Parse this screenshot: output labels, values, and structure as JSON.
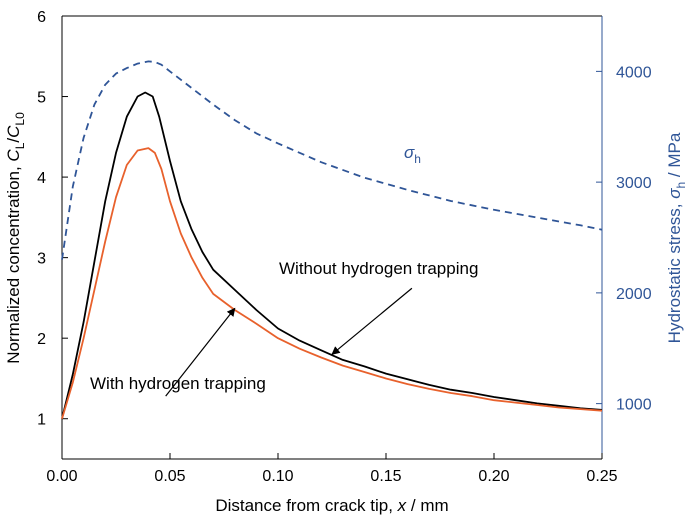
{
  "chart_data": {
    "type": "line",
    "xlabel": {
      "main": "Distance from crack tip, ",
      "var": "x",
      "unit": " / mm"
    },
    "xlim": [
      0.0,
      0.25
    ],
    "x_ticks": [
      "0.00",
      "0.05",
      "0.10",
      "0.15",
      "0.20",
      "0.25"
    ],
    "left_axis": {
      "label": {
        "prefix": "Normalized concentration, ",
        "num_base": "C",
        "num_sub": "L",
        "slash": "/",
        "den_base": "C",
        "den_sub": "L0"
      },
      "ylim": [
        0.5,
        6.0
      ],
      "ticks": [
        "1",
        "2",
        "3",
        "4",
        "5",
        "6"
      ]
    },
    "right_axis": {
      "label": {
        "prefix": "Hydrostatic stress, ",
        "var": "σ",
        "sub": "h",
        "unit": " / MPa"
      },
      "ylim": [
        500,
        4500
      ],
      "ticks": [
        "1000",
        "2000",
        "3000",
        "4000"
      ],
      "color": "#2f5597"
    },
    "series": [
      {
        "axis": "left",
        "color": "#000000",
        "style": "solid",
        "x": [
          0.0,
          0.005,
          0.01,
          0.015,
          0.02,
          0.025,
          0.03,
          0.035,
          0.0385,
          0.042,
          0.045,
          0.05,
          0.055,
          0.06,
          0.065,
          0.07,
          0.08,
          0.09,
          0.1,
          0.11,
          0.12,
          0.13,
          0.14,
          0.15,
          0.16,
          0.17,
          0.18,
          0.19,
          0.2,
          0.21,
          0.22,
          0.23,
          0.24,
          0.25
        ],
        "values": [
          1.0,
          1.55,
          2.2,
          2.95,
          3.7,
          4.3,
          4.75,
          5.0,
          5.05,
          5.0,
          4.75,
          4.2,
          3.7,
          3.35,
          3.07,
          2.85,
          2.6,
          2.35,
          2.12,
          1.97,
          1.85,
          1.73,
          1.65,
          1.56,
          1.49,
          1.42,
          1.36,
          1.32,
          1.27,
          1.23,
          1.19,
          1.16,
          1.13,
          1.11
        ]
      },
      {
        "axis": "left",
        "color": "#e8612c",
        "style": "solid",
        "x": [
          0.0,
          0.005,
          0.01,
          0.015,
          0.02,
          0.025,
          0.03,
          0.035,
          0.04,
          0.043,
          0.046,
          0.05,
          0.055,
          0.06,
          0.065,
          0.07,
          0.08,
          0.09,
          0.1,
          0.11,
          0.12,
          0.13,
          0.14,
          0.15,
          0.16,
          0.17,
          0.18,
          0.19,
          0.2,
          0.21,
          0.22,
          0.23,
          0.24,
          0.25
        ],
        "values": [
          1.0,
          1.45,
          2.0,
          2.6,
          3.2,
          3.75,
          4.15,
          4.33,
          4.36,
          4.3,
          4.1,
          3.7,
          3.3,
          3.0,
          2.75,
          2.55,
          2.35,
          2.18,
          2.0,
          1.87,
          1.76,
          1.66,
          1.58,
          1.5,
          1.43,
          1.37,
          1.32,
          1.28,
          1.23,
          1.2,
          1.17,
          1.14,
          1.12,
          1.1
        ]
      },
      {
        "axis": "right",
        "color": "#2f5597",
        "style": "dashed",
        "x": [
          0.0,
          0.005,
          0.01,
          0.015,
          0.02,
          0.025,
          0.03,
          0.035,
          0.04,
          0.043,
          0.046,
          0.05,
          0.06,
          0.07,
          0.08,
          0.09,
          0.1,
          0.12,
          0.14,
          0.16,
          0.18,
          0.2,
          0.22,
          0.24,
          0.25
        ],
        "values": [
          2300,
          2960,
          3400,
          3700,
          3880,
          3980,
          4030,
          4070,
          4090,
          4085,
          4060,
          4000,
          3850,
          3700,
          3560,
          3440,
          3350,
          3180,
          3040,
          2930,
          2830,
          2750,
          2680,
          2610,
          2570
        ]
      }
    ],
    "annotations": [
      {
        "text": "Without hydrogen trapping",
        "arrow_to": {
          "x": 0.125,
          "y": 1.8
        }
      },
      {
        "text": "With hydrogen trapping",
        "arrow_to": {
          "x": 0.08,
          "y": 2.37
        }
      }
    ],
    "series_label": {
      "var": "σ",
      "sub": "h"
    }
  }
}
